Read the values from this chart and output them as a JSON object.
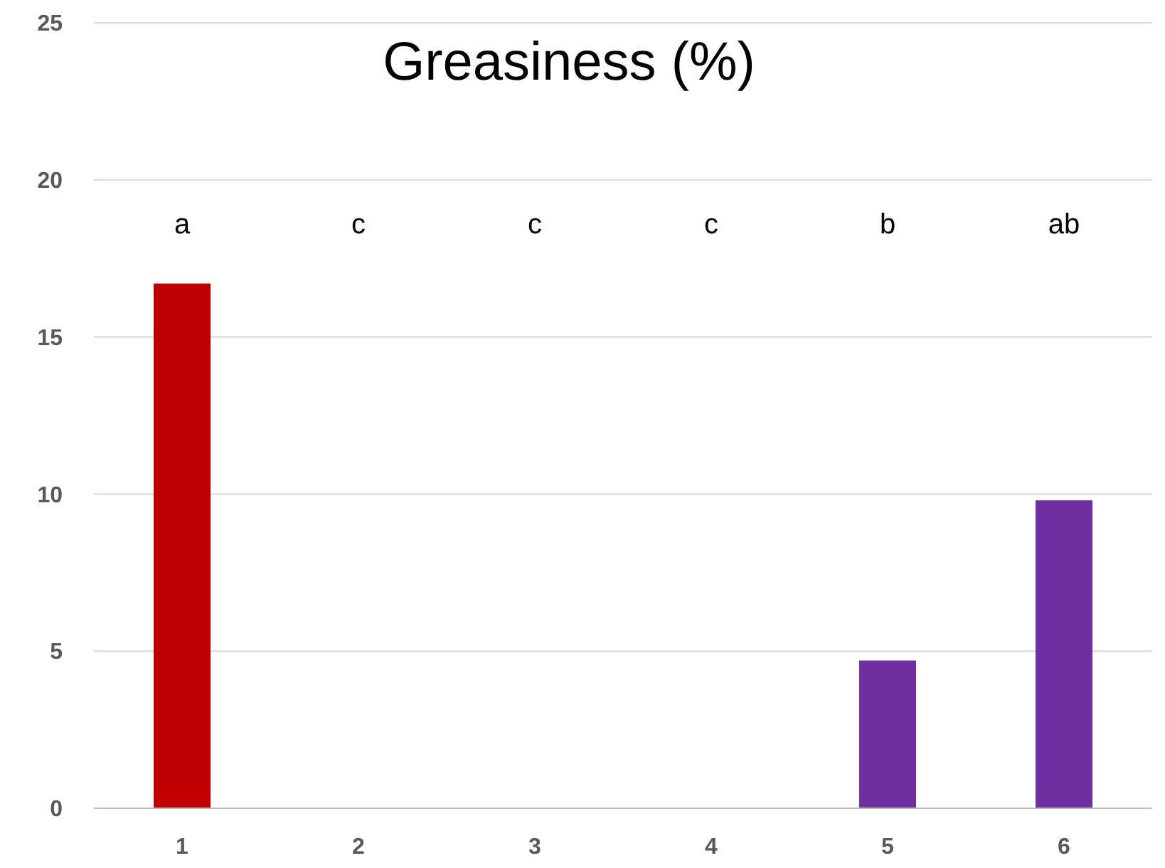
{
  "chart_data": {
    "type": "bar",
    "title": "Greasiness (%)",
    "categories": [
      "1",
      "2",
      "3",
      "4",
      "5",
      "6"
    ],
    "values": [
      16.7,
      0,
      0,
      0,
      4.7,
      9.8
    ],
    "colors": [
      "#c00000",
      "#c00000",
      "#c00000",
      "#c00000",
      "#7030a0",
      "#7030a0"
    ],
    "ylim": [
      0,
      25
    ],
    "yticks": [
      0,
      5,
      10,
      15,
      20,
      25
    ],
    "grid": "y",
    "annotations": [
      "a",
      "c",
      "c",
      "c",
      "b",
      "ab"
    ]
  }
}
